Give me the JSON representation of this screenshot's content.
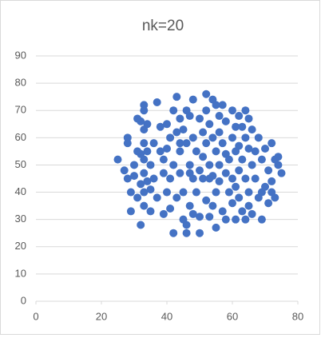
{
  "chart_data": {
    "type": "scatter",
    "title": "nk=20",
    "color": "#4472c4",
    "x": [
      25,
      27,
      28,
      28,
      28,
      29,
      29,
      30,
      31,
      31,
      31,
      32,
      32,
      32,
      33,
      33,
      33,
      33,
      33,
      33,
      33,
      33,
      34,
      34,
      34,
      35,
      35,
      36,
      37,
      37,
      38,
      38,
      39,
      39,
      40,
      40,
      40,
      41,
      41,
      41,
      42,
      42,
      42,
      43,
      43,
      43,
      44,
      44,
      44,
      45,
      45,
      45,
      46,
      46,
      46,
      46,
      47,
      47,
      47,
      48,
      48,
      48,
      48,
      49,
      49,
      50,
      50,
      50,
      51,
      51,
      51,
      52,
      52,
      52,
      52,
      53,
      53,
      53,
      54,
      54,
      54,
      54,
      55,
      55,
      55,
      55,
      56,
      56,
      56,
      56,
      57,
      57,
      58,
      58,
      58,
      58,
      59,
      59,
      60,
      60,
      60,
      60,
      61,
      61,
      61,
      62,
      62,
      62,
      62,
      63,
      63,
      63,
      64,
      64,
      64,
      64,
      65,
      65,
      65,
      66,
      66,
      66,
      67,
      67,
      68,
      68,
      69,
      69,
      70,
      70,
      71,
      71,
      72,
      72,
      72,
      73,
      73,
      74,
      75,
      74,
      30,
      36,
      39,
      50,
      57,
      61,
      44,
      47,
      53,
      65,
      69,
      35,
      32
    ],
    "y": [
      52,
      48,
      60,
      58,
      45,
      40,
      33,
      50,
      55,
      38,
      67,
      66,
      28,
      43,
      72,
      70,
      63,
      58,
      52,
      47,
      40,
      35,
      65,
      55,
      44,
      50,
      33,
      58,
      73,
      38,
      64,
      55,
      32,
      47,
      65,
      56,
      40,
      60,
      45,
      34,
      25,
      70,
      50,
      75,
      62,
      38,
      67,
      55,
      47,
      30,
      63,
      40,
      70,
      58,
      28,
      25,
      68,
      50,
      35,
      60,
      45,
      74,
      32,
      55,
      40,
      67,
      48,
      31,
      62,
      53,
      45,
      76,
      70,
      58,
      37,
      65,
      50,
      31,
      74,
      60,
      46,
      35,
      72,
      55,
      40,
      27,
      68,
      62,
      50,
      44,
      58,
      33,
      66,
      54,
      47,
      30,
      52,
      40,
      70,
      60,
      45,
      36,
      55,
      42,
      30,
      68,
      57,
      48,
      38,
      64,
      52,
      33,
      70,
      60,
      45,
      30,
      56,
      40,
      35,
      63,
      50,
      32,
      55,
      45,
      60,
      38,
      52,
      30,
      56,
      42,
      48,
      36,
      58,
      44,
      40,
      52,
      38,
      50,
      47,
      53,
      46,
      45,
      52,
      25,
      72,
      64,
      58,
      47,
      45,
      67,
      40,
      41,
      54
    ],
    "xlim": [
      0,
      80
    ],
    "xticks": [
      0,
      20,
      40,
      60,
      80
    ],
    "ylim": [
      0,
      90
    ],
    "yticks": [
      0,
      10,
      20,
      30,
      40,
      50,
      60,
      70,
      80,
      90
    ]
  }
}
